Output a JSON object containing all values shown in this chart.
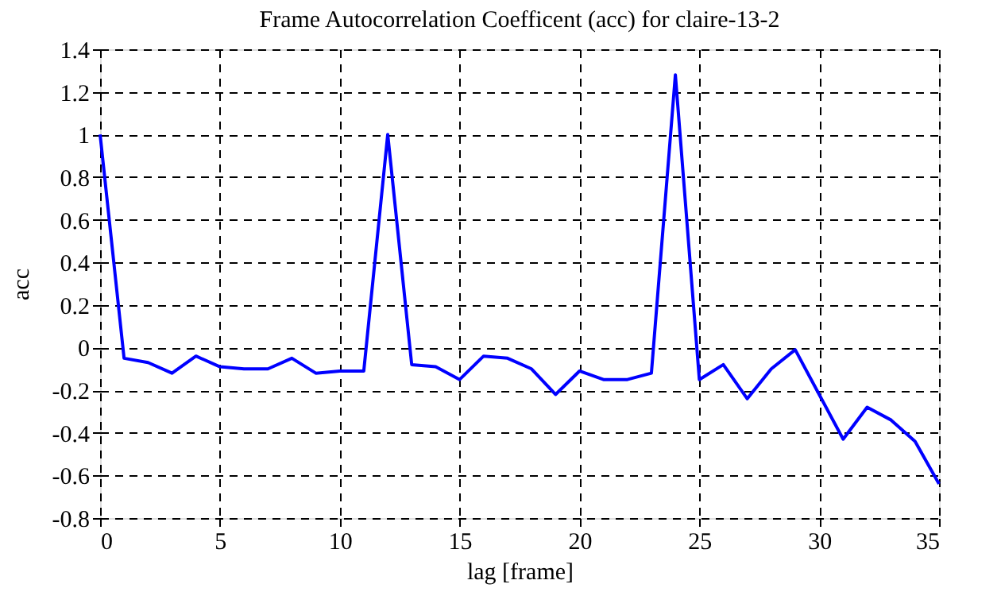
{
  "chart_data": {
    "type": "line",
    "title": "Frame Autocorrelation Coefficent (acc) for claire-13-2",
    "xlabel": "lag [frame]",
    "ylabel": "acc",
    "x": [
      0,
      1,
      2,
      3,
      4,
      5,
      6,
      7,
      8,
      9,
      10,
      11,
      12,
      13,
      14,
      15,
      16,
      17,
      18,
      19,
      20,
      21,
      22,
      23,
      24,
      25,
      26,
      27,
      28,
      29,
      30,
      31,
      32,
      33,
      34,
      35
    ],
    "series": [
      {
        "color": "#0000ff",
        "values": [
          1.0,
          -0.05,
          -0.07,
          -0.12,
          -0.04,
          -0.09,
          -0.1,
          -0.1,
          -0.05,
          -0.12,
          -0.11,
          -0.11,
          1.0,
          -0.08,
          -0.09,
          -0.15,
          -0.04,
          -0.05,
          -0.1,
          -0.22,
          -0.11,
          -0.15,
          -0.15,
          -0.12,
          1.28,
          -0.15,
          -0.08,
          -0.24,
          -0.1,
          -0.01,
          -0.22,
          -0.43,
          -0.28,
          -0.34,
          -0.44,
          -0.64
        ]
      }
    ],
    "xlim": [
      0,
      35
    ],
    "xticks": [
      0,
      5,
      10,
      15,
      20,
      25,
      30,
      35
    ],
    "ylim": [
      -0.8,
      1.4
    ],
    "yticks": [
      -0.8,
      -0.6,
      -0.4,
      -0.2,
      0,
      0.2,
      0.4,
      0.6,
      0.8,
      1,
      1.2,
      1.4
    ],
    "grid": true,
    "line_style": "solid",
    "marker": "none"
  }
}
